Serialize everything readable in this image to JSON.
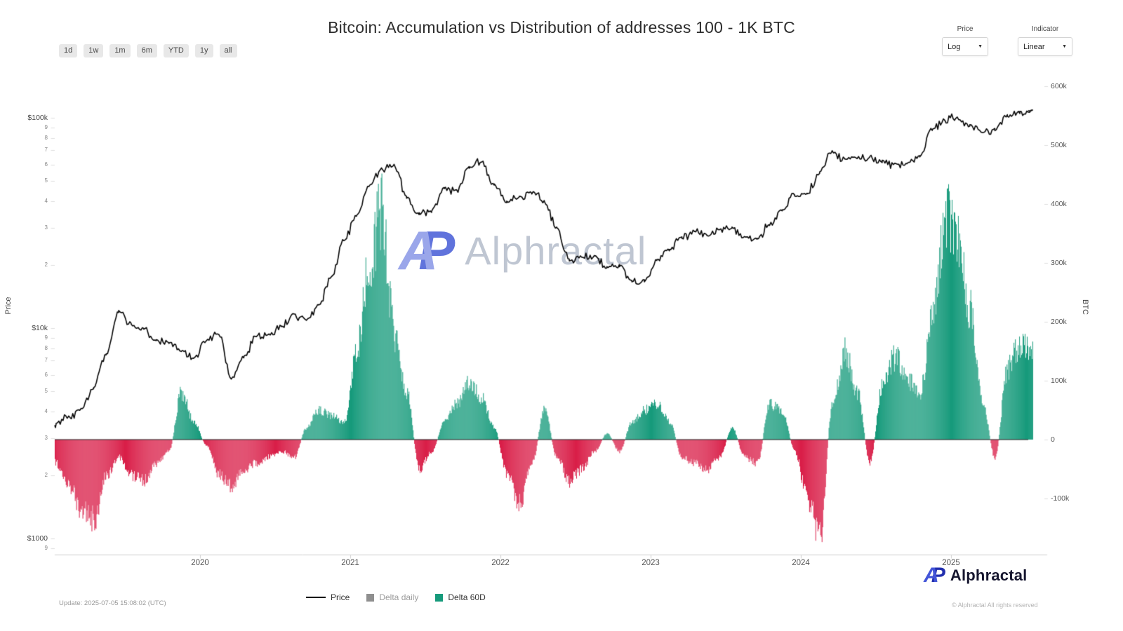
{
  "title": "Bitcoin: Accumulation vs Distribution of addresses 100 - 1K BTC",
  "toolbar": {
    "ranges": [
      "1d",
      "1w",
      "1m",
      "6m",
      "YTD",
      "1y",
      "all"
    ]
  },
  "controls": {
    "price_dropdown": {
      "label": "Price",
      "value": "Log"
    },
    "indicator_dropdown": {
      "label": "Indicator",
      "value": "Linear"
    }
  },
  "watermark": {
    "brand": "Alphractal"
  },
  "legend": [
    {
      "label": "Price",
      "type": "line",
      "color": "#0a0a0a",
      "muted": false
    },
    {
      "label": "Delta daily",
      "type": "square",
      "color": "#8f8f8f",
      "muted": true
    },
    {
      "label": "Delta 60D",
      "type": "square",
      "color": "#169a7b",
      "muted": false
    }
  ],
  "footer": {
    "update": "Update: 2025-07-05 15:08:02 (UTC)",
    "brand": "Alphractal",
    "copyright": "© Alphractal All rights reserved"
  },
  "chart_data": {
    "type": "mixed",
    "title": "Bitcoin: Accumulation vs Distribution of addresses 100 - 1K BTC",
    "x": {
      "start_month": "2019-01",
      "interval": "monthly",
      "end_month": "2025-07",
      "tick_labels": [
        "2020",
        "2021",
        "2022",
        "2023",
        "2024",
        "2025"
      ]
    },
    "y_left": {
      "label": "Price",
      "scale": "log",
      "unit": "USD",
      "ticks": [
        {
          "label": "$100k",
          "value": 100000,
          "major": true
        },
        {
          "label": "9",
          "value": 90000
        },
        {
          "label": "8",
          "value": 80000
        },
        {
          "label": "7",
          "value": 70000
        },
        {
          "label": "6",
          "value": 60000
        },
        {
          "label": "5",
          "value": 50000
        },
        {
          "label": "4",
          "value": 40000
        },
        {
          "label": "3",
          "value": 30000
        },
        {
          "label": "2",
          "value": 20000
        },
        {
          "label": "$10k",
          "value": 10000,
          "major": true
        },
        {
          "label": "9",
          "value": 9000
        },
        {
          "label": "8",
          "value": 8000
        },
        {
          "label": "7",
          "value": 7000
        },
        {
          "label": "6",
          "value": 6000
        },
        {
          "label": "5",
          "value": 5000
        },
        {
          "label": "4",
          "value": 4000
        },
        {
          "label": "3",
          "value": 3000
        },
        {
          "label": "2",
          "value": 2000
        },
        {
          "label": "$1000",
          "value": 1000,
          "major": true
        },
        {
          "label": "9",
          "value": 900
        }
      ]
    },
    "y_right": {
      "label": "BTC",
      "scale": "linear",
      "ticks": [
        {
          "label": "600k",
          "value": 600000
        },
        {
          "label": "500k",
          "value": 500000
        },
        {
          "label": "400k",
          "value": 400000
        },
        {
          "label": "300k",
          "value": 300000
        },
        {
          "label": "200k",
          "value": 200000
        },
        {
          "label": "100k",
          "value": 100000
        },
        {
          "label": "0",
          "value": 0
        },
        {
          "label": "-100k",
          "value": -100000
        }
      ]
    },
    "series": [
      {
        "name": "Price",
        "type": "line",
        "axis": "left",
        "color": "#0a0a0a",
        "start_month": "2019-01",
        "interval": "monthly",
        "values": [
          3500,
          3800,
          4100,
          5200,
          7500,
          12000,
          10500,
          10000,
          8800,
          8500,
          7800,
          7200,
          8800,
          9300,
          5800,
          7300,
          9200,
          9300,
          10200,
          11600,
          10800,
          12800,
          17500,
          26000,
          34000,
          47000,
          57000,
          60000,
          42000,
          35000,
          36000,
          46000,
          45000,
          58000,
          62000,
          48000,
          40000,
          42000,
          44000,
          40000,
          30000,
          21000,
          22000,
          22000,
          19500,
          19800,
          16800,
          16800,
          21000,
          23500,
          27000,
          29000,
          27500,
          29500,
          30000,
          27500,
          26500,
          31000,
          36500,
          43000,
          43500,
          55000,
          69000,
          64000,
          64000,
          65000,
          62000,
          60000,
          61000,
          66000,
          88000,
          97000,
          100000,
          92000,
          85000,
          88000,
          103000,
          106000,
          108000
        ]
      },
      {
        "name": "Delta daily",
        "type": "bar",
        "axis": "right",
        "color": "#8f8f8f",
        "visible": false,
        "values": []
      },
      {
        "name": "Delta 60D",
        "type": "bar",
        "axis": "right",
        "colors": {
          "positive": "#169a7b",
          "negative": "#d91e48"
        },
        "start_month": "2019-01",
        "interval": "monthly",
        "values": [
          -40000,
          -80000,
          -120000,
          -135000,
          -60000,
          -30000,
          -60000,
          -70000,
          -40000,
          -20000,
          80000,
          30000,
          -10000,
          -60000,
          -80000,
          -50000,
          -40000,
          -30000,
          -20000,
          -30000,
          20000,
          50000,
          40000,
          30000,
          150000,
          300000,
          390000,
          180000,
          80000,
          -50000,
          -20000,
          30000,
          60000,
          100000,
          70000,
          20000,
          -60000,
          -110000,
          -40000,
          50000,
          -30000,
          -70000,
          -50000,
          -20000,
          10000,
          -20000,
          30000,
          50000,
          60000,
          30000,
          -30000,
          -40000,
          -50000,
          -30000,
          20000,
          -30000,
          -40000,
          60000,
          50000,
          -20000,
          -100000,
          -165000,
          60000,
          150000,
          80000,
          -40000,
          90000,
          140000,
          100000,
          80000,
          200000,
          380000,
          330000,
          220000,
          60000,
          -30000,
          120000,
          160000,
          150000
        ]
      }
    ]
  }
}
